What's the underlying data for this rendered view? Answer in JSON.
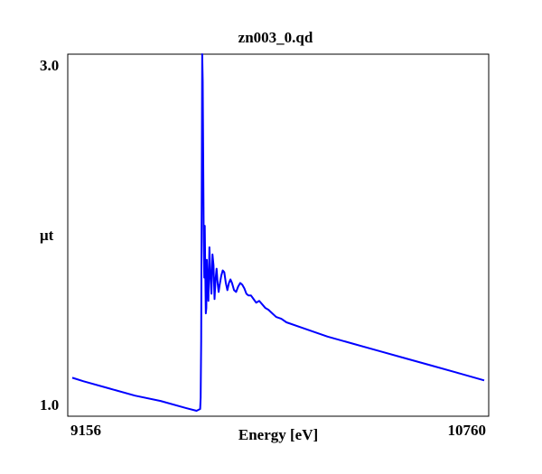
{
  "chart_data": {
    "type": "line",
    "title": "zn003_0.qd",
    "xlabel": "Energy [eV]",
    "ylabel": "μt",
    "xlim": [
      9156,
      10760
    ],
    "ylim": [
      1.0,
      3.0
    ],
    "x_ticks": [
      "9156",
      "10760"
    ],
    "y_ticks": [
      "3.0",
      "1.0"
    ],
    "grid": false,
    "legend": "none",
    "series": [
      {
        "color": "#0000ff",
        "x": [
          9156,
          9200,
          9300,
          9400,
          9500,
          9600,
          9640,
          9654,
          9656,
          9658,
          9660,
          9662,
          9664,
          9666,
          9668,
          9670,
          9672,
          9674,
          9676,
          9678,
          9680,
          9683,
          9686,
          9690,
          9694,
          9698,
          9702,
          9706,
          9710,
          9714,
          9718,
          9722,
          9726,
          9730,
          9736,
          9742,
          9748,
          9754,
          9760,
          9766,
          9772,
          9778,
          9786,
          9794,
          9802,
          9810,
          9818,
          9826,
          9834,
          9842,
          9852,
          9862,
          9872,
          9884,
          9896,
          9908,
          9920,
          9935,
          9950,
          9970,
          9990,
          10050,
          10150,
          10250,
          10350,
          10450,
          10550,
          10650,
          10760
        ],
        "values": [
          1.19,
          1.17,
          1.13,
          1.09,
          1.06,
          1.02,
          1.005,
          1.015,
          1.08,
          1.4,
          2.2,
          3.0,
          2.85,
          2.4,
          1.95,
          1.75,
          2.04,
          1.78,
          1.55,
          1.58,
          1.85,
          1.72,
          1.62,
          1.92,
          1.76,
          1.66,
          1.88,
          1.82,
          1.63,
          1.74,
          1.8,
          1.72,
          1.67,
          1.71,
          1.76,
          1.79,
          1.78,
          1.72,
          1.68,
          1.72,
          1.74,
          1.72,
          1.68,
          1.67,
          1.7,
          1.72,
          1.71,
          1.69,
          1.66,
          1.65,
          1.65,
          1.63,
          1.61,
          1.62,
          1.6,
          1.58,
          1.57,
          1.55,
          1.53,
          1.52,
          1.5,
          1.47,
          1.42,
          1.38,
          1.34,
          1.3,
          1.26,
          1.22,
          1.175
        ]
      }
    ]
  }
}
